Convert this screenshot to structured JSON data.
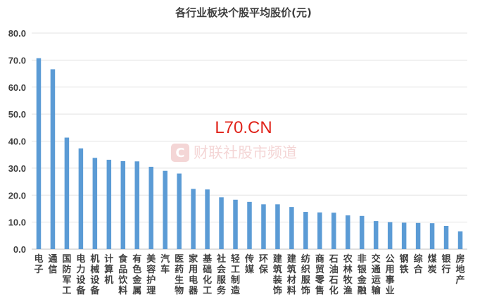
{
  "chart_data": {
    "type": "bar",
    "title": "各行业板块个股平均股价(元)",
    "xlabel": "",
    "ylabel": "",
    "ylim": [
      0,
      80
    ],
    "yticks": [
      "0.0",
      "10.0",
      "20.0",
      "30.0",
      "40.0",
      "50.0",
      "60.0",
      "70.0",
      "80.0"
    ],
    "grid": true,
    "legend": "none",
    "bar_color": "#5b9bd5",
    "categories": [
      "电子",
      "通信",
      "国防军工",
      "电力设备",
      "机械设备",
      "计算机",
      "食品饮料",
      "有色金属",
      "美容护理",
      "汽车",
      "医药生物",
      "家用电器",
      "基础化工",
      "社会服务",
      "轻工制造",
      "传媒",
      "环保",
      "建筑装饰",
      "建筑材料",
      "纺织服饰",
      "商贸零售",
      "石油石化",
      "农林牧渔",
      "非银金融",
      "交通运输",
      "公用事业",
      "钢铁",
      "综合",
      "煤炭",
      "银行",
      "房地产"
    ],
    "values": [
      70.7,
      66.6,
      41.3,
      37.3,
      33.8,
      33.1,
      32.6,
      32.5,
      30.5,
      29.0,
      28.0,
      22.3,
      22.1,
      19.2,
      18.3,
      17.5,
      16.6,
      16.6,
      15.6,
      13.8,
      13.6,
      13.5,
      12.5,
      12.3,
      10.4,
      10.0,
      9.8,
      9.7,
      9.6,
      8.6,
      6.6
    ]
  },
  "watermarks": {
    "site": "L70.CN",
    "logo_text": "财联社股市频道",
    "logo_icon": "c-logo-icon",
    "site_color": "#e0241b",
    "logo_color": "#f3cfcf"
  }
}
